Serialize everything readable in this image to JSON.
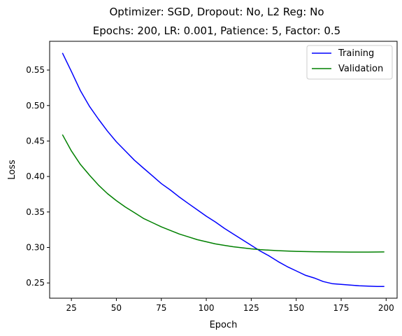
{
  "chart_data": {
    "type": "line",
    "title": "Optimizer: SGD, Dropout: No, L2 Reg: No",
    "subtitle": "Epochs: 200, LR: 0.001, Patience: 5, Factor: 0.5",
    "xlabel": "Epoch",
    "ylabel": "Loss",
    "xlim": [
      12.9,
      206.1
    ],
    "ylim": [
      0.2285,
      0.5905
    ],
    "xticks": [
      25,
      50,
      75,
      100,
      125,
      150,
      175,
      200
    ],
    "yticks": [
      0.25,
      0.3,
      0.35,
      0.4,
      0.45,
      0.5,
      0.55
    ],
    "grid": false,
    "legend_position": "top-right",
    "series": [
      {
        "name": "Training",
        "color": "#0000ff",
        "x": [
          20,
          25,
          30,
          35,
          40,
          45,
          50,
          55,
          60,
          65,
          70,
          75,
          80,
          85,
          90,
          95,
          100,
          105,
          110,
          115,
          120,
          125,
          130,
          135,
          140,
          145,
          150,
          155,
          160,
          165,
          170,
          175,
          180,
          185,
          190,
          195,
          199
        ],
        "y": [
          0.574,
          0.548,
          0.521,
          0.499,
          0.481,
          0.464,
          0.449,
          0.436,
          0.423,
          0.412,
          0.401,
          0.39,
          0.381,
          0.371,
          0.362,
          0.353,
          0.344,
          0.336,
          0.327,
          0.319,
          0.311,
          0.303,
          0.295,
          0.288,
          0.28,
          0.273,
          0.267,
          0.261,
          0.257,
          0.252,
          0.249,
          0.248,
          0.247,
          0.246,
          0.2455,
          0.245,
          0.245
        ]
      },
      {
        "name": "Validation",
        "color": "#008000",
        "x": [
          20,
          25,
          30,
          35,
          40,
          45,
          50,
          55,
          60,
          65,
          70,
          75,
          80,
          85,
          90,
          95,
          100,
          105,
          110,
          115,
          120,
          125,
          130,
          135,
          140,
          145,
          150,
          155,
          160,
          165,
          170,
          175,
          180,
          185,
          190,
          195,
          199
        ],
        "y": [
          0.459,
          0.436,
          0.417,
          0.402,
          0.388,
          0.376,
          0.366,
          0.357,
          0.349,
          0.341,
          0.335,
          0.329,
          0.324,
          0.319,
          0.315,
          0.311,
          0.308,
          0.305,
          0.303,
          0.301,
          0.2995,
          0.298,
          0.297,
          0.2962,
          0.2955,
          0.295,
          0.2945,
          0.2942,
          0.294,
          0.2938,
          0.2937,
          0.2936,
          0.2935,
          0.2935,
          0.2935,
          0.2936,
          0.2937
        ]
      }
    ]
  }
}
